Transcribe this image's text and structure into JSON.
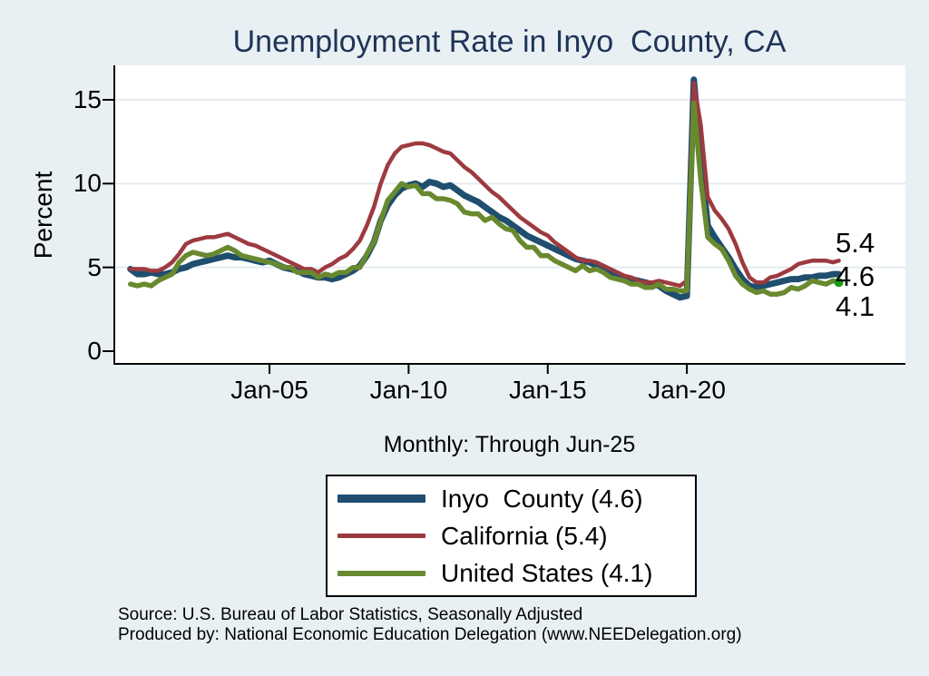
{
  "title": "Unemployment Rate in Inyo  County, CA",
  "subtitle": "Monthly: Through Jun-25",
  "y_axis": {
    "label": "Percent",
    "ticks": [
      0,
      5,
      10,
      15
    ],
    "gridlines": [
      5,
      10,
      15
    ]
  },
  "x_axis": {
    "ticks": [
      {
        "label": "Jan-05",
        "year": 2005
      },
      {
        "label": "Jan-10",
        "year": 2010
      },
      {
        "label": "Jan-15",
        "year": 2015
      },
      {
        "label": "Jan-20",
        "year": 2020
      }
    ]
  },
  "end_labels": [
    {
      "text": "5.4",
      "value": 5.4,
      "series": "California"
    },
    {
      "text": "4.6",
      "value": 4.6,
      "series": "Inyo  County"
    },
    {
      "text": "4.1",
      "value": 4.1,
      "series": "United States"
    }
  ],
  "legend": {
    "items": [
      {
        "label": "Inyo  County (4.6)",
        "color": "#1f4e6f",
        "thickness": 9
      },
      {
        "label": "California (5.4)",
        "color": "#9d3a40",
        "thickness": 5
      },
      {
        "label": "United States (4.1)",
        "color": "#69892f",
        "thickness": 6
      }
    ]
  },
  "source_lines": [
    "Source: U.S. Bureau of Labor Statistics, Seasonally Adjusted",
    "Produced by: National Economic Education Delegation (www.NEEDelegation.org)"
  ],
  "colors": {
    "background": "#e9f0f3",
    "plot_background": "#ffffff",
    "gridline": "#e3ebf0",
    "axis": "#000000",
    "title": "#1e3457",
    "inyo": "#1f4e6f",
    "california": "#9d3a40",
    "united_states": "#69892f",
    "end_marker": "#18a018"
  },
  "chart_data": {
    "type": "line",
    "title": "Unemployment Rate in Inyo  County, CA",
    "xlabel": "",
    "ylabel": "Percent",
    "ylim": [
      0,
      17
    ],
    "xlim_years": [
      1999.4,
      2027.9
    ],
    "grid": true,
    "legend_position": "below",
    "x_note": "decimal years, quarterly samples Jan-2000 through Apr-2025 plus final Jun-2025 point",
    "x": [
      2000,
      2000.25,
      2000.5,
      2000.75,
      2001,
      2001.25,
      2001.5,
      2001.75,
      2002,
      2002.25,
      2002.5,
      2002.75,
      2003,
      2003.25,
      2003.5,
      2003.75,
      2004,
      2004.25,
      2004.5,
      2004.75,
      2005,
      2005.25,
      2005.5,
      2005.75,
      2006,
      2006.25,
      2006.5,
      2006.75,
      2007,
      2007.25,
      2007.5,
      2007.75,
      2008,
      2008.25,
      2008.5,
      2008.75,
      2009,
      2009.25,
      2009.5,
      2009.75,
      2010,
      2010.25,
      2010.5,
      2010.75,
      2011,
      2011.25,
      2011.5,
      2011.75,
      2012,
      2012.25,
      2012.5,
      2012.75,
      2013,
      2013.25,
      2013.5,
      2013.75,
      2014,
      2014.25,
      2014.5,
      2014.75,
      2015,
      2015.25,
      2015.5,
      2015.75,
      2016,
      2016.25,
      2016.5,
      2016.75,
      2017,
      2017.25,
      2017.5,
      2017.75,
      2018,
      2018.25,
      2018.5,
      2018.75,
      2019,
      2019.25,
      2019.5,
      2019.75,
      2020,
      2020.25,
      2020.5,
      2020.75,
      2021,
      2021.25,
      2021.5,
      2021.75,
      2022,
      2022.25,
      2022.5,
      2022.75,
      2023,
      2023.25,
      2023.5,
      2023.75,
      2024,
      2024.25,
      2024.5,
      2024.75,
      2025,
      2025.25,
      2025.46
    ],
    "series": [
      {
        "name": "Inyo  County",
        "color": "#1f4e6f",
        "line_width": 7,
        "last_value": 4.6,
        "values": [
          4.9,
          4.6,
          4.6,
          4.7,
          4.6,
          4.6,
          4.7,
          4.9,
          5.0,
          5.2,
          5.3,
          5.4,
          5.5,
          5.6,
          5.7,
          5.6,
          5.6,
          5.5,
          5.4,
          5.3,
          5.4,
          5.2,
          5.0,
          4.9,
          4.8,
          4.6,
          4.5,
          4.4,
          4.4,
          4.3,
          4.4,
          4.6,
          4.8,
          5.1,
          5.7,
          6.5,
          7.8,
          8.7,
          9.3,
          9.7,
          9.9,
          10.0,
          9.8,
          10.1,
          10.0,
          9.8,
          9.9,
          9.6,
          9.3,
          9.1,
          8.9,
          8.6,
          8.3,
          8.0,
          7.8,
          7.5,
          7.2,
          6.9,
          6.7,
          6.5,
          6.3,
          6.1,
          5.9,
          5.7,
          5.5,
          5.4,
          5.3,
          5.1,
          4.9,
          4.7,
          4.5,
          4.4,
          4.3,
          4.2,
          4.1,
          4.0,
          3.9,
          3.6,
          3.4,
          3.2,
          3.3,
          16.2,
          11.5,
          7.5,
          6.8,
          6.2,
          5.6,
          4.9,
          4.3,
          3.9,
          3.8,
          3.9,
          4.0,
          4.1,
          4.2,
          4.3,
          4.3,
          4.4,
          4.4,
          4.5,
          4.5,
          4.6,
          4.6
        ]
      },
      {
        "name": "California",
        "color": "#9d3a40",
        "line_width": 4.5,
        "last_value": 5.4,
        "values": [
          4.9,
          4.9,
          4.9,
          4.8,
          4.8,
          5.0,
          5.3,
          5.8,
          6.4,
          6.6,
          6.7,
          6.8,
          6.8,
          6.9,
          7.0,
          6.8,
          6.6,
          6.4,
          6.3,
          6.1,
          5.9,
          5.7,
          5.5,
          5.3,
          5.1,
          4.9,
          4.9,
          4.7,
          5.0,
          5.2,
          5.5,
          5.7,
          6.1,
          6.6,
          7.5,
          8.6,
          10.0,
          11.1,
          11.8,
          12.2,
          12.3,
          12.4,
          12.4,
          12.3,
          12.1,
          11.9,
          11.8,
          11.4,
          11.0,
          10.7,
          10.3,
          9.9,
          9.5,
          9.2,
          8.8,
          8.4,
          8.0,
          7.7,
          7.4,
          7.1,
          6.9,
          6.5,
          6.2,
          5.9,
          5.6,
          5.4,
          5.4,
          5.3,
          5.1,
          4.9,
          4.7,
          4.5,
          4.4,
          4.2,
          4.1,
          4.1,
          4.2,
          4.1,
          4.0,
          3.9,
          4.2,
          16.0,
          13.5,
          9.2,
          8.4,
          7.9,
          7.3,
          6.4,
          5.3,
          4.4,
          4.1,
          4.1,
          4.4,
          4.5,
          4.7,
          4.9,
          5.2,
          5.3,
          5.4,
          5.4,
          5.4,
          5.3,
          5.4
        ]
      },
      {
        "name": "United States",
        "color": "#69892f",
        "line_width": 5.5,
        "last_value": 4.1,
        "values": [
          4.0,
          3.9,
          4.0,
          3.9,
          4.2,
          4.4,
          4.6,
          5.3,
          5.7,
          5.9,
          5.8,
          5.7,
          5.8,
          6.0,
          6.2,
          6.0,
          5.7,
          5.6,
          5.5,
          5.4,
          5.3,
          5.2,
          5.0,
          5.0,
          4.7,
          4.7,
          4.7,
          4.4,
          4.6,
          4.5,
          4.7,
          4.7,
          5.0,
          5.0,
          5.8,
          6.5,
          7.8,
          9.0,
          9.5,
          10.0,
          9.8,
          9.9,
          9.4,
          9.4,
          9.1,
          9.1,
          9.0,
          8.8,
          8.3,
          8.2,
          8.2,
          7.8,
          8.0,
          7.6,
          7.3,
          7.2,
          6.6,
          6.2,
          6.2,
          5.7,
          5.7,
          5.4,
          5.2,
          5.0,
          4.8,
          5.1,
          4.8,
          4.9,
          4.7,
          4.4,
          4.3,
          4.2,
          4.0,
          4.0,
          3.8,
          3.8,
          4.0,
          3.7,
          3.7,
          3.6,
          3.6,
          14.8,
          10.2,
          6.8,
          6.4,
          6.1,
          5.4,
          4.5,
          4.0,
          3.7,
          3.5,
          3.6,
          3.4,
          3.4,
          3.5,
          3.8,
          3.7,
          3.9,
          4.2,
          4.1,
          4.0,
          4.2,
          4.1
        ]
      }
    ],
    "end_point_marker": {
      "series": "United States",
      "color": "#18a018"
    }
  }
}
